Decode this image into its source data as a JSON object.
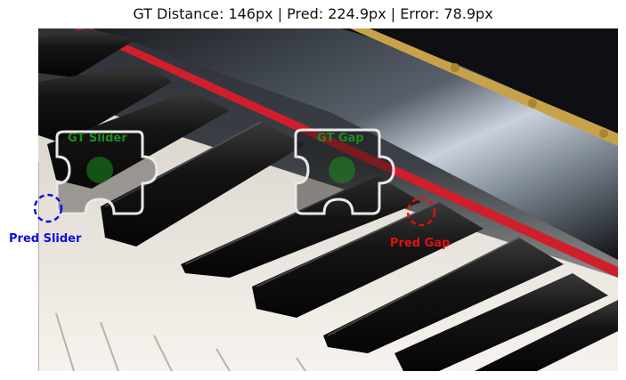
{
  "title": "GT Distance: 146px | Pred: 224.9px | Error: 78.9px",
  "markers": {
    "gt_slider": {
      "label": "GT Slider",
      "color": "#1f8a1f"
    },
    "gt_gap": {
      "label": "GT Gap",
      "color": "#1f8a1f"
    },
    "pred_slider": {
      "label": "Pred Slider",
      "color": "#1010e0"
    },
    "pred_gap": {
      "label": "Pred Gap",
      "color": "#e01010"
    }
  },
  "colors": {
    "white_key": "#f1eee8",
    "black_key": "#151515",
    "felt": "#d01f2b",
    "brass": "#c8a24a",
    "lid": "#0f1114"
  }
}
